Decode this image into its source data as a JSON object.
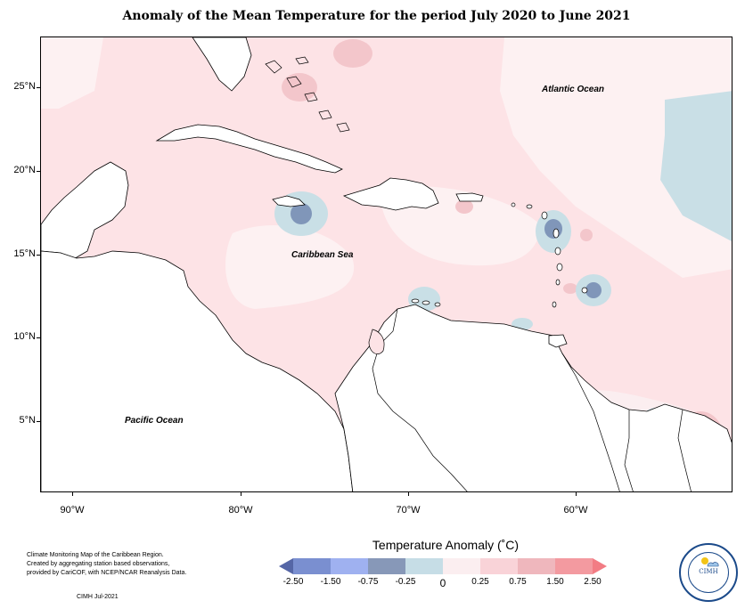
{
  "title": "Anomaly of the Mean Temperature for the period July 2020 to June 2021",
  "map": {
    "labels": {
      "atlantic": "Atlantic Ocean",
      "caribbean": "Caribbean Sea",
      "pacific": "Pacific Ocean"
    },
    "lat_ticks": [
      "25°N",
      "20°N",
      "15°N",
      "10°N",
      "5°N"
    ],
    "lon_ticks": [
      "90°W",
      "80°W",
      "70°W",
      "60°W"
    ],
    "land_color": "#ffffff",
    "coast_color": "#000000"
  },
  "legend": {
    "title": "Temperature Anomaly (˚C)",
    "labels": [
      "-2.50",
      "-1.50",
      "-0.75",
      "-0.25",
      "0",
      "0.25",
      "0.75",
      "1.50",
      "2.50"
    ],
    "colors": [
      "#5566a6",
      "#7a8fd0",
      "#9fb1f0",
      "#8798b8",
      "#c6dde6",
      "#fbeef0",
      "#f9d3d8",
      "#efb7bd",
      "#f39aa0",
      "#f27c84"
    ]
  },
  "credits": {
    "lines": [
      "Climate Monitoring Map of the Caribbean Region.",
      "Created by aggregating station based observations,",
      "provided by CariCOF, with NCEP/NCAR Reanalysis Data."
    ],
    "stamp": "CIMH Jul-2021"
  },
  "logo": {
    "text": "CIMH",
    "icon": "sun-cloud-logo-icon"
  }
}
